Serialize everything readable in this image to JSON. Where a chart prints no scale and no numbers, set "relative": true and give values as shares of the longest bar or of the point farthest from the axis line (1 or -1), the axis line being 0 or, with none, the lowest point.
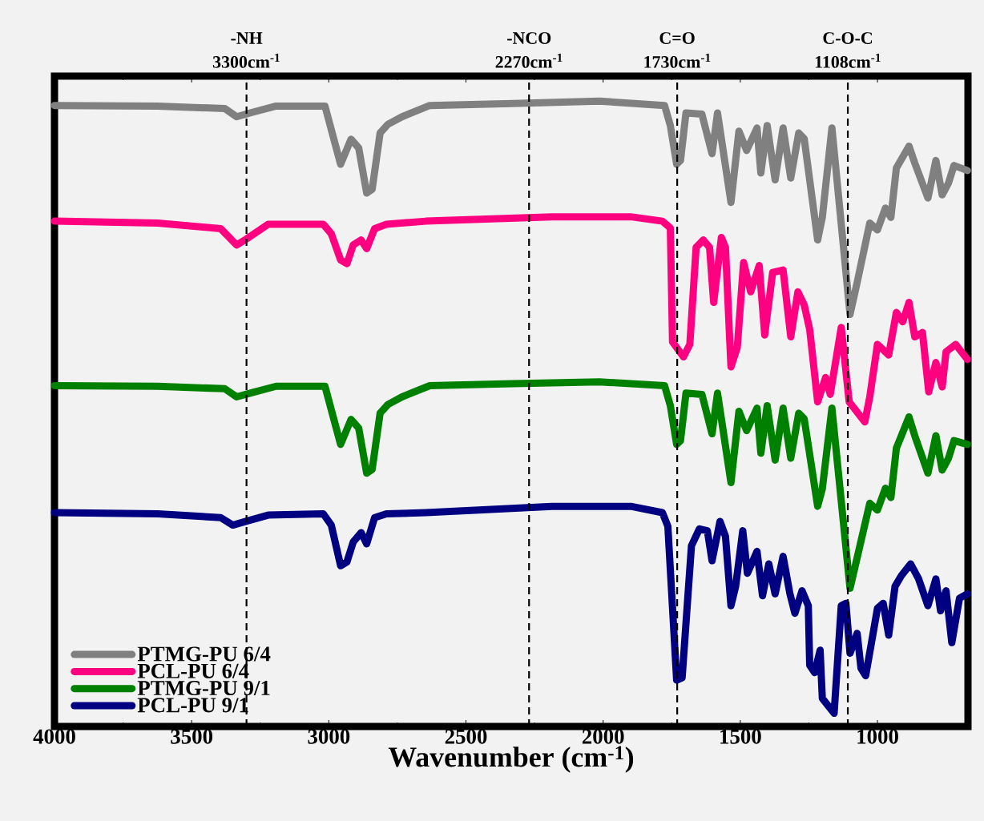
{
  "chart_data": {
    "type": "line",
    "relative": true,
    "xlabel": "Wavenumber (cm$^{-1}$)",
    "xlim": [
      4000,
      670
    ],
    "xticks": [
      4000,
      3500,
      3000,
      2500,
      2000,
      1500,
      1000
    ],
    "legend": "bottom left",
    "grid": false,
    "marker": "none",
    "line_style": "solid",
    "ref_lines": [
      {
        "axis": "x",
        "value": 3300,
        "label": "-NH 3300cm$^{-1}$",
        "color": "#000000",
        "line_style": "dashed"
      },
      {
        "axis": "x",
        "value": 2270,
        "label": "-NCO 2270cm$^{-1}$",
        "color": "#000000",
        "line_style": "dashed"
      },
      {
        "axis": "x",
        "value": 1730,
        "label": "C=O 1730cm$^{-1}$",
        "color": "#000000",
        "line_style": "dashed"
      },
      {
        "axis": "x",
        "value": 1108,
        "label": "C-O-C 1108cm$^{-1}$",
        "color": "#000000",
        "line_style": "dashed"
      }
    ],
    "series": [
      {
        "name": "PTMG-PU 6/4",
        "color": "#808080",
        "x": [
          4000,
          3624,
          3379,
          3336,
          3279,
          3192,
          3014,
          2957,
          2919,
          2891,
          2862,
          2842,
          2813,
          2784,
          2733,
          2632,
          2330,
          2014,
          1776,
          1755,
          1732,
          1718,
          1698,
          1640,
          1603,
          1583,
          1534,
          1505,
          1477,
          1439,
          1425,
          1402,
          1373,
          1344,
          1316,
          1287,
          1267,
          1218,
          1201,
          1166,
          1100,
          1074,
          1028,
          1000,
          971,
          951,
          931,
          885,
          864,
          816,
          787,
          764,
          741,
          721,
          672
        ],
        "values": [
          0.993,
          0.992,
          0.988,
          0.975,
          0.982,
          0.992,
          0.992,
          0.899,
          0.939,
          0.925,
          0.853,
          0.859,
          0.949,
          0.963,
          0.975,
          0.993,
          0.996,
          1,
          0.993,
          0.961,
          0.899,
          0.905,
          0.981,
          0.979,
          0.916,
          0.981,
          0.838,
          0.952,
          0.921,
          0.957,
          0.885,
          0.961,
          0.874,
          0.957,
          0.877,
          0.949,
          0.94,
          0.778,
          0.814,
          0.957,
          0.659,
          0.71,
          0.805,
          0.794,
          0.829,
          0.814,
          0.893,
          0.928,
          0.901,
          0.845,
          0.905,
          0.85,
          0.869,
          0.897,
          0.889
        ]
      },
      {
        "name": "PCL-PU 6/4",
        "color": "#ff0080",
        "x": [
          4000,
          3624,
          3394,
          3336,
          3302,
          3221,
          3020,
          2991,
          2957,
          2934,
          2911,
          2882,
          2862,
          2833,
          2790,
          2646,
          2187,
          1899,
          1784,
          1755,
          1747,
          1707,
          1684,
          1661,
          1635,
          1612,
          1597,
          1569,
          1554,
          1534,
          1511,
          1488,
          1462,
          1431,
          1411,
          1382,
          1344,
          1316,
          1290,
          1267,
          1247,
          1218,
          1189,
          1172,
          1132,
          1103,
          1046,
          1028,
          1000,
          959,
          931,
          908,
          885,
          864,
          836,
          813,
          787,
          764,
          750,
          715,
          672
        ],
        "values": [
          0.808,
          0.805,
          0.796,
          0.77,
          0.779,
          0.803,
          0.803,
          0.788,
          0.746,
          0.74,
          0.77,
          0.778,
          0.764,
          0.796,
          0.803,
          0.808,
          0.815,
          0.815,
          0.808,
          0.797,
          0.615,
          0.591,
          0.611,
          0.766,
          0.778,
          0.766,
          0.678,
          0.782,
          0.766,
          0.575,
          0.606,
          0.742,
          0.695,
          0.737,
          0.626,
          0.726,
          0.73,
          0.623,
          0.695,
          0.674,
          0.635,
          0.519,
          0.558,
          0.531,
          0.638,
          0.519,
          0.487,
          0.527,
          0.611,
          0.594,
          0.662,
          0.647,
          0.678,
          0.623,
          0.63,
          0.535,
          0.582,
          0.543,
          0.599,
          0.611,
          0.587
        ]
      },
      {
        "name": "PTMG-PU 9/1",
        "color": "#008000",
        "x": [
          4000,
          3624,
          3379,
          3336,
          3279,
          3192,
          3014,
          2957,
          2919,
          2891,
          2862,
          2842,
          2813,
          2784,
          2733,
          2632,
          2330,
          2014,
          1776,
          1755,
          1732,
          1718,
          1698,
          1640,
          1603,
          1583,
          1534,
          1505,
          1477,
          1439,
          1425,
          1402,
          1373,
          1344,
          1316,
          1287,
          1267,
          1218,
          1201,
          1166,
          1100,
          1074,
          1028,
          1000,
          971,
          951,
          931,
          885,
          864,
          816,
          787,
          764,
          741,
          721,
          672
        ],
        "values": [
          0.545,
          0.544,
          0.54,
          0.527,
          0.534,
          0.544,
          0.544,
          0.451,
          0.491,
          0.477,
          0.405,
          0.411,
          0.501,
          0.515,
          0.527,
          0.545,
          0.548,
          0.551,
          0.545,
          0.513,
          0.451,
          0.457,
          0.533,
          0.531,
          0.468,
          0.533,
          0.39,
          0.504,
          0.473,
          0.509,
          0.437,
          0.513,
          0.426,
          0.509,
          0.429,
          0.501,
          0.492,
          0.352,
          0.38,
          0.509,
          0.221,
          0.27,
          0.357,
          0.346,
          0.381,
          0.366,
          0.445,
          0.495,
          0.465,
          0.405,
          0.465,
          0.41,
          0.429,
          0.457,
          0.451
        ]
      },
      {
        "name": "PCL-PU 9/1",
        "color": "#000080",
        "x": [
          4000,
          3624,
          3394,
          3350,
          3302,
          3221,
          3020,
          2991,
          2957,
          2934,
          2911,
          2882,
          2862,
          2833,
          2790,
          2646,
          2187,
          1899,
          1784,
          1764,
          1732,
          1712,
          1678,
          1649,
          1620,
          1603,
          1574,
          1554,
          1534,
          1517,
          1491,
          1474,
          1439,
          1419,
          1396,
          1373,
          1344,
          1319,
          1301,
          1275,
          1252,
          1247,
          1229,
          1209,
          1201,
          1158,
          1132,
          1115,
          1100,
          1074,
          1060,
          1043,
          1017,
          1000,
          979,
          959,
          936,
          913,
          879,
          850,
          816,
          787,
          770,
          750,
          729,
          701,
          672
        ],
        "values": [
          0.342,
          0.34,
          0.334,
          0.322,
          0.328,
          0.338,
          0.34,
          0.322,
          0.257,
          0.263,
          0.295,
          0.31,
          0.292,
          0.334,
          0.34,
          0.342,
          0.352,
          0.352,
          0.342,
          0.32,
          0.074,
          0.078,
          0.289,
          0.316,
          0.313,
          0.265,
          0.328,
          0.304,
          0.193,
          0.224,
          0.313,
          0.245,
          0.28,
          0.209,
          0.26,
          0.212,
          0.272,
          0.212,
          0.181,
          0.217,
          0.193,
          0.098,
          0.086,
          0.122,
          0.045,
          0.021,
          0.193,
          0.197,
          0.117,
          0.149,
          0.093,
          0.081,
          0.146,
          0.189,
          0.197,
          0.146,
          0.224,
          0.241,
          0.26,
          0.236,
          0.193,
          0.236,
          0.185,
          0.217,
          0.134,
          0.205,
          0.212
        ]
      }
    ]
  }
}
